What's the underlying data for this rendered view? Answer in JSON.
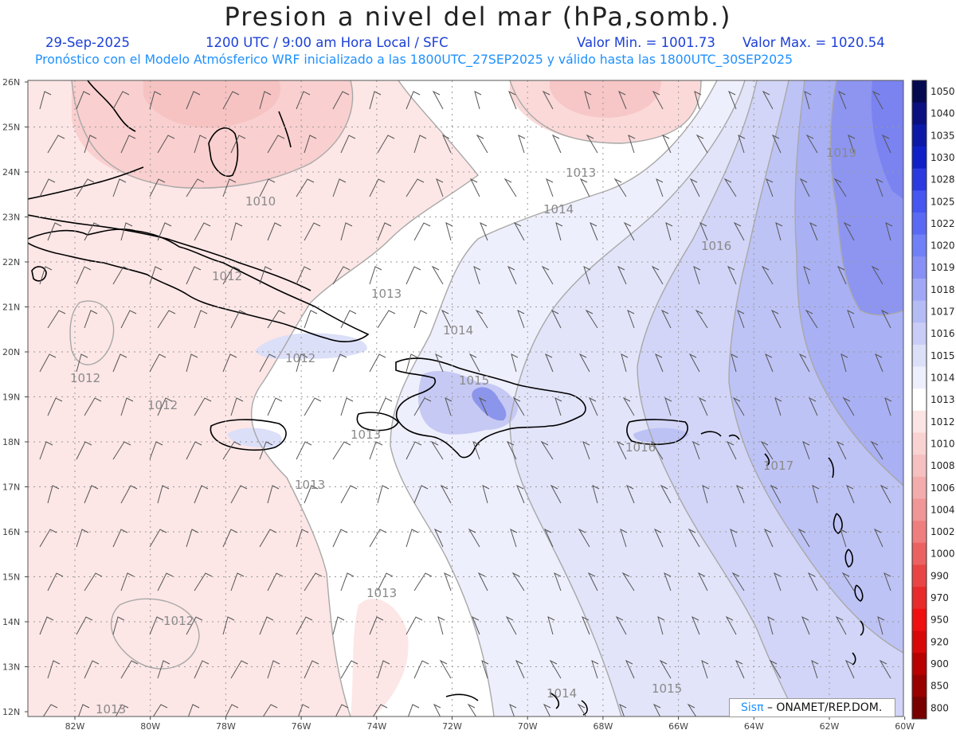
{
  "header": {
    "title": "Presion a nivel del mar (hPa,somb.)",
    "date": "29-Sep-2025",
    "time": "1200 UTC / 9:00 am Hora Local / SFC",
    "valmin": "Valor Min. = 1001.73",
    "valmax": "Valor Max. = 1020.54",
    "forecast": "Pronóstico con el Modelo Atmósferico WRF inicializado a las 1800UTC_27SEP2025 y válido hasta las  1800UTC_30SEP2025"
  },
  "axes": {
    "lat_labels": [
      "26N",
      "25N",
      "24N",
      "23N",
      "22N",
      "21N",
      "20N",
      "19N",
      "18N",
      "17N",
      "16N",
      "15N",
      "14N",
      "13N",
      "12N"
    ],
    "lon_labels": [
      "82W",
      "80W",
      "78W",
      "76W",
      "74W",
      "72W",
      "70W",
      "68W",
      "66W",
      "64W",
      "62W",
      "60W"
    ]
  },
  "colorbar": {
    "levels": [
      "1050",
      "1040",
      "1035",
      "1030",
      "1028",
      "1025",
      "1022",
      "1020",
      "1019",
      "1018",
      "1017",
      "1016",
      "1015",
      "1014",
      "1013",
      "1012",
      "1010",
      "1008",
      "1006",
      "1004",
      "1002",
      "1000",
      "990",
      "970",
      "950",
      "920",
      "900",
      "850",
      "800"
    ],
    "colors": [
      "#050a50",
      "#0a1080",
      "#0c18a8",
      "#1020c8",
      "#2a3ae0",
      "#4656f0",
      "#5a6af4",
      "#7080f6",
      "#8890f6",
      "#a0a8f6",
      "#b4bcf6",
      "#c8ccf6",
      "#dcdff8",
      "#eeeffc",
      "#ffffff",
      "#fbe4e4",
      "#f9d2d2",
      "#f6c0c0",
      "#f3acac",
      "#f09696",
      "#ef7f7f",
      "#ec6262",
      "#ea4545",
      "#e82a2a",
      "#f01010",
      "#d80808",
      "#b80000",
      "#980000",
      "#780000"
    ]
  },
  "contour_labels": [
    "1010",
    "1013",
    "1014",
    "1016",
    "1019",
    "1012",
    "1013",
    "1014",
    "1015",
    "1012",
    "1012",
    "1013",
    "1013",
    "1013",
    "1016",
    "1017",
    "1012",
    "1013",
    "1014",
    "1015",
    "1012"
  ],
  "credit": {
    "brand": "Sisπ",
    "org": "– ONAMET/REP.DOM."
  }
}
